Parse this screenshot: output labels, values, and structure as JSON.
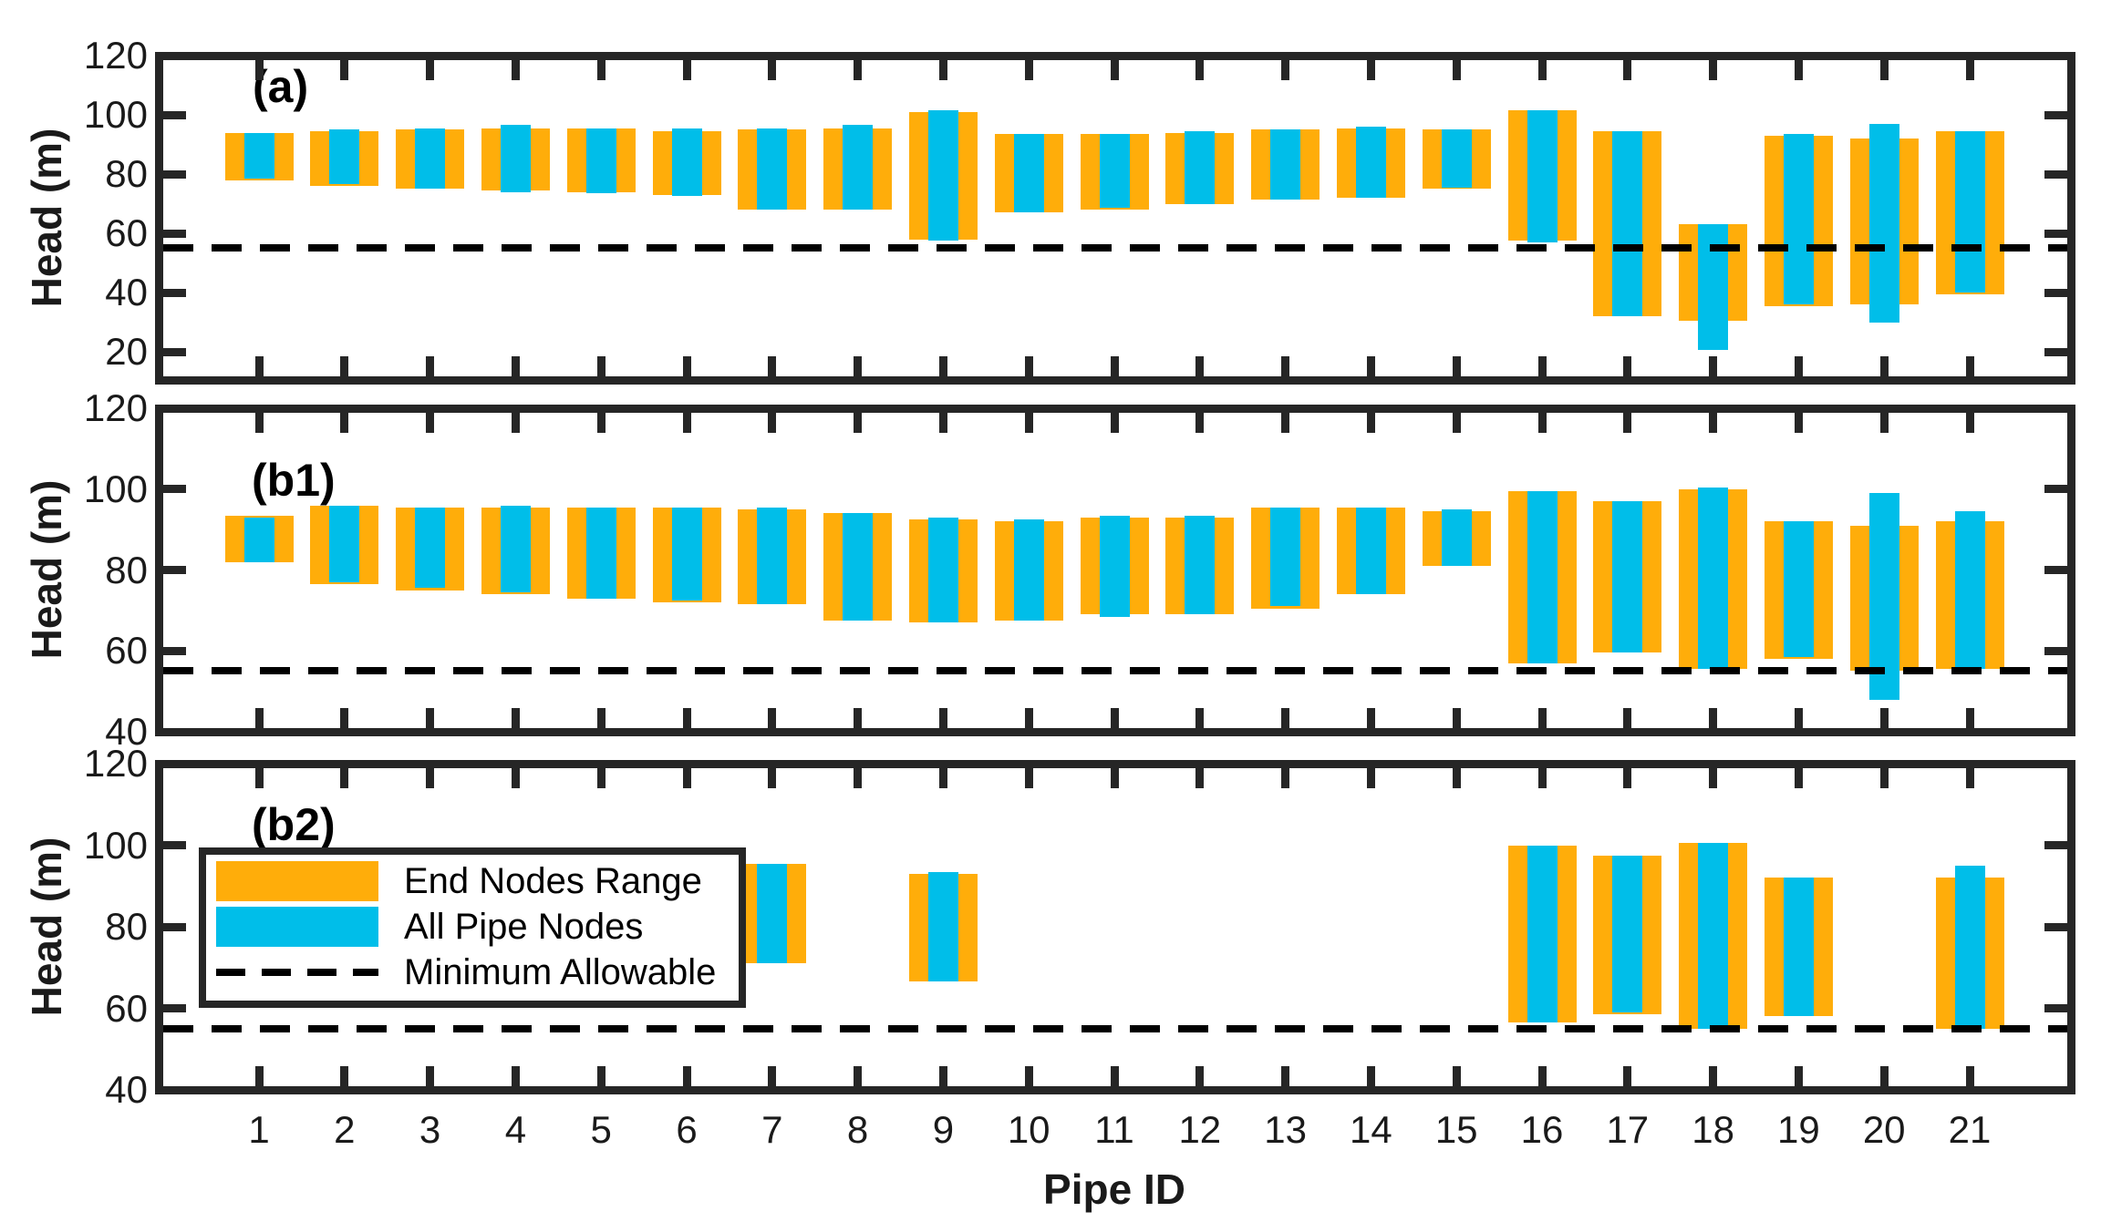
{
  "figure": {
    "xlabel": "Pipe ID",
    "ylabel": "Head (m)"
  },
  "chart_data": {
    "type": "bar",
    "subtype": "floating-range-bars",
    "title": "",
    "xlabel": "Pipe ID",
    "ylabel": "Head (m)",
    "categories": [
      1,
      2,
      3,
      4,
      5,
      6,
      7,
      8,
      9,
      10,
      11,
      12,
      13,
      14,
      15,
      16,
      17,
      18,
      19,
      20,
      21
    ],
    "legend": [
      "End Nodes Range",
      "All Pipe Nodes",
      "Minimum Allowable"
    ],
    "legend_position": "upper-left of panel b2",
    "min_allowable": 55,
    "colors": {
      "end_nodes_range": "#FFAD0A",
      "all_pipe_nodes": "#00BEE9",
      "min_allowable": "#000000",
      "axis": "#262626"
    },
    "grid": false,
    "panels": [
      {
        "label": "(a)",
        "ylim": [
          10.5,
          120
        ],
        "yticks": [
          120,
          100,
          80,
          60,
          40,
          20
        ],
        "end_nodes_range": [
          [
            78,
            94
          ],
          [
            76,
            94.5
          ],
          [
            75,
            95
          ],
          [
            74.5,
            95.5
          ],
          [
            74,
            95.5
          ],
          [
            73,
            94.5
          ],
          [
            68,
            95
          ],
          [
            68,
            95.5
          ],
          [
            58,
            101
          ],
          [
            67,
            93.5
          ],
          [
            68,
            93.5
          ],
          [
            70,
            94
          ],
          [
            71.5,
            95
          ],
          [
            72,
            95.5
          ],
          [
            75,
            95
          ],
          [
            57.5,
            101.5
          ],
          [
            32,
            94.5
          ],
          [
            30.5,
            63
          ],
          [
            35.5,
            93
          ],
          [
            36,
            92
          ],
          [
            39.5,
            94.5
          ]
        ],
        "all_pipe_nodes": [
          [
            78.5,
            94
          ],
          [
            76.5,
            95
          ],
          [
            75,
            95.5
          ],
          [
            74,
            96.5
          ],
          [
            73.5,
            95.5
          ],
          [
            72.5,
            95.5
          ],
          [
            68,
            95.5
          ],
          [
            68,
            96.5
          ],
          [
            57.5,
            101.5
          ],
          [
            67,
            93.5
          ],
          [
            68.5,
            93.5
          ],
          [
            70,
            94.5
          ],
          [
            71.5,
            95
          ],
          [
            72,
            96
          ],
          [
            75.5,
            95
          ],
          [
            57,
            101.5
          ],
          [
            32,
            94.5
          ],
          [
            20.5,
            63
          ],
          [
            36,
            93.5
          ],
          [
            30,
            97
          ],
          [
            40,
            94.5
          ]
        ]
      },
      {
        "label": "(b1)",
        "ylim": [
          40,
          120
        ],
        "yticks": [
          120,
          100,
          80,
          60,
          40
        ],
        "end_nodes_range": [
          [
            82,
            93.5
          ],
          [
            76.5,
            96
          ],
          [
            75,
            95.5
          ],
          [
            74,
            95.5
          ],
          [
            73,
            95.5
          ],
          [
            72,
            95.5
          ],
          [
            71.5,
            95
          ],
          [
            67.5,
            94
          ],
          [
            67,
            92.5
          ],
          [
            67.5,
            92
          ],
          [
            69,
            93
          ],
          [
            69,
            93
          ],
          [
            70.5,
            95.5
          ],
          [
            74,
            95.5
          ],
          [
            81,
            94.5
          ],
          [
            57,
            99.5
          ],
          [
            59.5,
            97
          ],
          [
            55.5,
            100
          ],
          [
            58,
            92
          ],
          [
            55,
            91
          ],
          [
            55.5,
            92
          ]
        ],
        "all_pipe_nodes": [
          [
            82,
            93
          ],
          [
            77,
            96
          ],
          [
            75.5,
            95.5
          ],
          [
            74.5,
            96
          ],
          [
            73,
            95.5
          ],
          [
            72.5,
            95.5
          ],
          [
            71.5,
            95.5
          ],
          [
            67.5,
            94
          ],
          [
            67,
            93
          ],
          [
            67.5,
            92.5
          ],
          [
            68.5,
            93.5
          ],
          [
            69,
            93.5
          ],
          [
            71,
            95.5
          ],
          [
            74,
            95.5
          ],
          [
            81,
            95
          ],
          [
            57,
            99.5
          ],
          [
            59.5,
            97
          ],
          [
            55.5,
            100.5
          ],
          [
            58.5,
            92
          ],
          [
            48,
            99
          ],
          [
            55.5,
            94.5
          ]
        ]
      },
      {
        "label": "(b2)",
        "ylim": [
          40,
          120
        ],
        "yticks": [
          120,
          100,
          80,
          60,
          40
        ],
        "end_nodes_range": [
          null,
          null,
          null,
          null,
          null,
          null,
          [
            71,
            95.5
          ],
          null,
          [
            66.5,
            93
          ],
          null,
          null,
          null,
          null,
          null,
          null,
          [
            56.5,
            100
          ],
          [
            58.5,
            97.5
          ],
          [
            55,
            100.5
          ],
          [
            58,
            92
          ],
          null,
          [
            55,
            92
          ]
        ],
        "all_pipe_nodes": [
          null,
          null,
          null,
          null,
          null,
          null,
          [
            71,
            95.5
          ],
          null,
          [
            66.5,
            93.5
          ],
          null,
          null,
          null,
          null,
          null,
          null,
          [
            56.5,
            100
          ],
          [
            59,
            97.5
          ],
          [
            55,
            100.5
          ],
          [
            58,
            92
          ],
          null,
          [
            55,
            95
          ]
        ]
      }
    ]
  }
}
